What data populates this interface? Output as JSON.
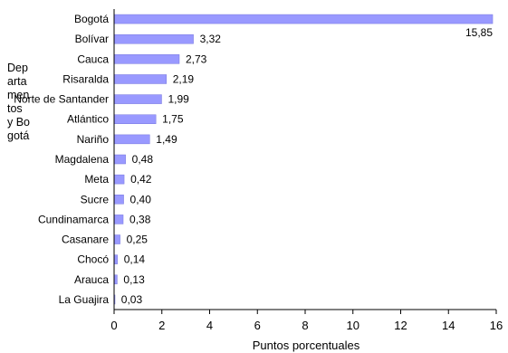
{
  "chart_data": {
    "type": "bar",
    "orientation": "horizontal",
    "categories": [
      "Bogotá",
      "Bolívar",
      "Cauca",
      "Risaralda",
      "Norte de Santander",
      "Atlántico",
      "Nariño",
      "Magdalena",
      "Meta",
      "Sucre",
      "Cundinamarca",
      "Casanare",
      "Chocó",
      "Arauca",
      "La Guajira"
    ],
    "values": [
      15.85,
      3.32,
      2.73,
      2.19,
      1.99,
      1.75,
      1.49,
      0.48,
      0.42,
      0.4,
      0.38,
      0.25,
      0.14,
      0.13,
      0.03
    ],
    "value_labels": [
      "15,85",
      "3,32",
      "2,73",
      "2,19",
      "1,99",
      "1,75",
      "1,49",
      "0,48",
      "0,42",
      "0,40",
      "0,38",
      "0,25",
      "0,14",
      "0,13",
      "0,03"
    ],
    "xlabel": "Puntos porcentuales",
    "ylabel": "Departamentos y Bogotá",
    "xlim": [
      0,
      16
    ],
    "xticks": [
      0,
      2,
      4,
      6,
      8,
      10,
      12,
      14,
      16
    ],
    "grid": false,
    "bar_color": "#9999ff",
    "bar_edge_color": "#7777dd"
  }
}
